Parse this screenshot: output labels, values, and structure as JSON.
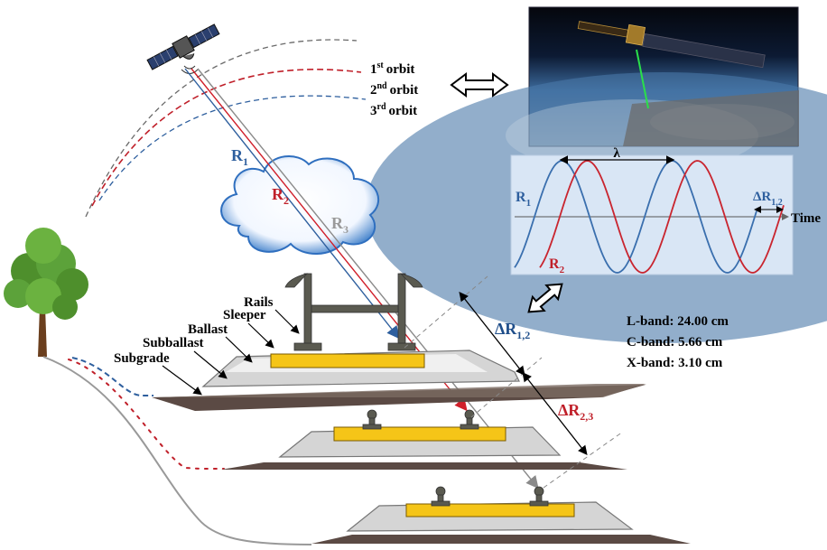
{
  "orbits": {
    "first": {
      "n": "1",
      "sup": "st",
      "word": "orbit"
    },
    "second": {
      "n": "2",
      "sup": "nd",
      "word": "orbit"
    },
    "third": {
      "n": "3",
      "sup": "rd",
      "word": "orbit"
    }
  },
  "ranges": {
    "r1": {
      "base": "R",
      "sub": "1"
    },
    "r2": {
      "base": "R",
      "sub": "2"
    },
    "r3": {
      "base": "R",
      "sub": "3"
    }
  },
  "wave": {
    "lambda": "λ",
    "r1": {
      "base": "R",
      "sub": "1"
    },
    "r2": {
      "base": "R",
      "sub": "2"
    },
    "delta": {
      "base": "ΔR",
      "sub": "1,2"
    },
    "time": "Time"
  },
  "track_layers": {
    "rails": "Rails",
    "sleeper": "Sleeper",
    "ballast": "Ballast",
    "subballast": "Subballast",
    "subgrade": "Subgrade"
  },
  "deltas": {
    "d12": {
      "base": "ΔR",
      "sub": "1,2"
    },
    "d23": {
      "base": "ΔR",
      "sub": "2,3"
    }
  },
  "bands": [
    "L-band: 24.00 cm",
    "C-band: 5.66 cm",
    "X-band: 3.10 cm"
  ],
  "colors": {
    "blue": "#2e5f9e",
    "red": "#c0202a",
    "gray": "#8a8a8a",
    "sleeper_yellow": "#f5c518",
    "ground_brown": "#5b4a44"
  }
}
